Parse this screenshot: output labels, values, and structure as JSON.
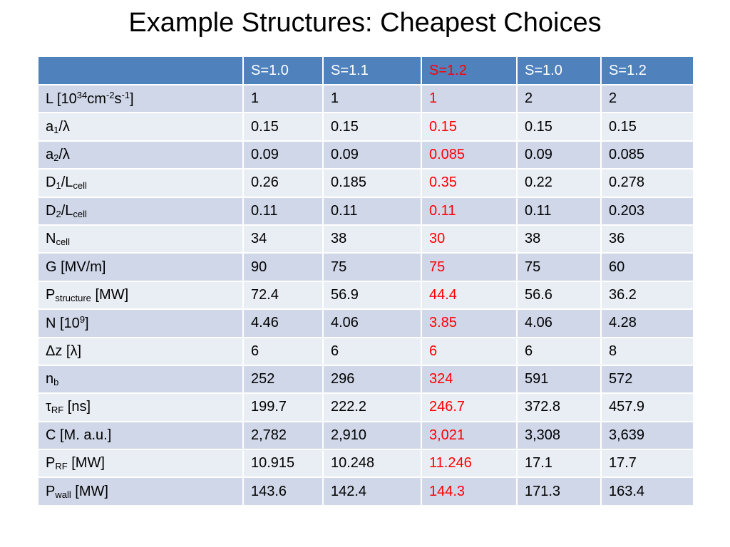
{
  "slide": {
    "title": "Example Structures: Cheapest Choices"
  },
  "table": {
    "headers": [
      "",
      "S=1.0",
      "S=1.1",
      "S=1.2",
      "S=1.0",
      "S=1.2"
    ],
    "highlight_column_index": 3,
    "highlight_color": "#ff0000",
    "header_color": "#4f81bd",
    "rows": [
      {
        "label": {
          "pre": "L [10",
          "sup1": "34",
          "mid": "cm",
          "sup2": "-2",
          "mid2": "s",
          "sup3": "-1",
          "post": "]"
        },
        "values": [
          "1",
          "1",
          "1",
          "2",
          "2"
        ]
      },
      {
        "label": {
          "base": "a",
          "sub": "1",
          "post": "/λ"
        },
        "values": [
          "0.15",
          "0.15",
          "0.15",
          "0.15",
          "0.15"
        ]
      },
      {
        "label": {
          "base": "a",
          "sub": "2",
          "post": "/λ"
        },
        "values": [
          "0.09",
          "0.09",
          "0.085",
          "0.09",
          "0.085"
        ]
      },
      {
        "label": {
          "base": "D",
          "sub": "1",
          "mid": "/L",
          "sub2": "cell"
        },
        "values": [
          "0.26",
          "0.185",
          "0.35",
          "0.22",
          "0.278"
        ]
      },
      {
        "label": {
          "base": "D",
          "sub": "2",
          "mid": "/L",
          "sub2": "cell"
        },
        "values": [
          "0.11",
          "0.11",
          "0.11",
          "0.11",
          "0.203"
        ]
      },
      {
        "label": {
          "base": "N",
          "sub": "cell"
        },
        "values": [
          "34",
          "38",
          "30",
          "38",
          "36"
        ]
      },
      {
        "label": {
          "text": "G [MV/m]"
        },
        "values": [
          "90",
          "75",
          "75",
          "75",
          "60"
        ]
      },
      {
        "label": {
          "base": "P",
          "sub": "structure",
          "post": " [MW]"
        },
        "values": [
          "72.4",
          "56.9",
          "44.4",
          "56.6",
          "36.2"
        ]
      },
      {
        "label": {
          "pre": "N [10",
          "sup": "9",
          "post": "]"
        },
        "values": [
          "4.46",
          "4.06",
          "3.85",
          "4.06",
          "4.28"
        ]
      },
      {
        "label": {
          "text": "Δz [λ]"
        },
        "values": [
          "6",
          "6",
          "6",
          "6",
          "8"
        ]
      },
      {
        "label": {
          "base": "n",
          "sub": "b"
        },
        "values": [
          "252",
          "296",
          "324",
          "591",
          "572"
        ]
      },
      {
        "label": {
          "base": "τ",
          "sub": "RF",
          "post": " [ns]"
        },
        "values": [
          "199.7",
          "222.2",
          "246.7",
          "372.8",
          "457.9"
        ]
      },
      {
        "label": {
          "text": "C [M. a.u.]"
        },
        "values": [
          "2,782",
          "2,910",
          "3,021",
          "3,308",
          "3,639"
        ]
      },
      {
        "label": {
          "base": "P",
          "sub": "RF",
          "post": " [MW]"
        },
        "values": [
          "10.915",
          "10.248",
          "11.246",
          "17.1",
          "17.7"
        ]
      },
      {
        "label": {
          "base": "P",
          "sub": "wall",
          "post": " [MW]"
        },
        "values": [
          "143.6",
          "142.4",
          "144.3",
          "171.3",
          "163.4"
        ]
      }
    ]
  }
}
